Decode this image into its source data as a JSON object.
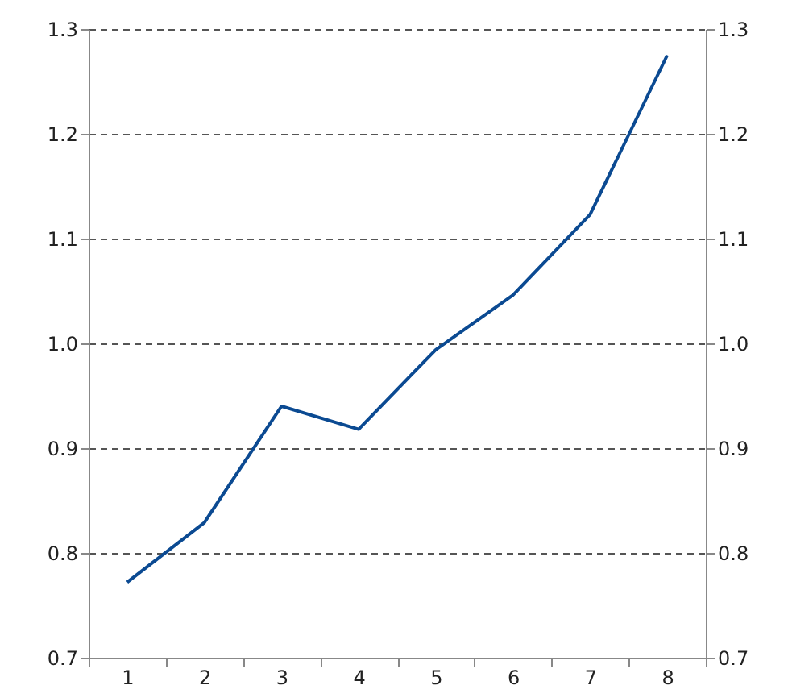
{
  "chart_data": {
    "type": "line",
    "categories": [
      "1",
      "2",
      "3",
      "4",
      "5",
      "6",
      "7",
      "8"
    ],
    "series": [
      {
        "color": "#0b4a92",
        "values": [
          0.772,
          0.829,
          0.94,
          0.918,
          0.994,
          1.046,
          1.123,
          1.275
        ]
      }
    ],
    "ylim": [
      0.7,
      1.3
    ],
    "yticks": [
      {
        "value": 0.7,
        "label": "0.7"
      },
      {
        "value": 0.8,
        "label": "0.8"
      },
      {
        "value": 0.9,
        "label": "0.9"
      },
      {
        "value": 1.0,
        "label": "1.0"
      },
      {
        "value": 1.1,
        "label": "1.1"
      },
      {
        "value": 1.2,
        "label": "1.2"
      },
      {
        "value": 1.3,
        "label": "1.3"
      }
    ],
    "y2lim": [
      0.7,
      1.3
    ],
    "y2ticks": [
      {
        "value": 0.7,
        "label": "0.7"
      },
      {
        "value": 0.8,
        "label": "0.8"
      },
      {
        "value": 0.9,
        "label": "0.9"
      },
      {
        "value": 1.0,
        "label": "1.0"
      },
      {
        "value": 1.1,
        "label": "1.1"
      },
      {
        "value": 1.2,
        "label": "1.2"
      },
      {
        "value": 1.3,
        "label": "1.3"
      }
    ],
    "grid": "y",
    "marker": "none",
    "line_style": "solid"
  }
}
